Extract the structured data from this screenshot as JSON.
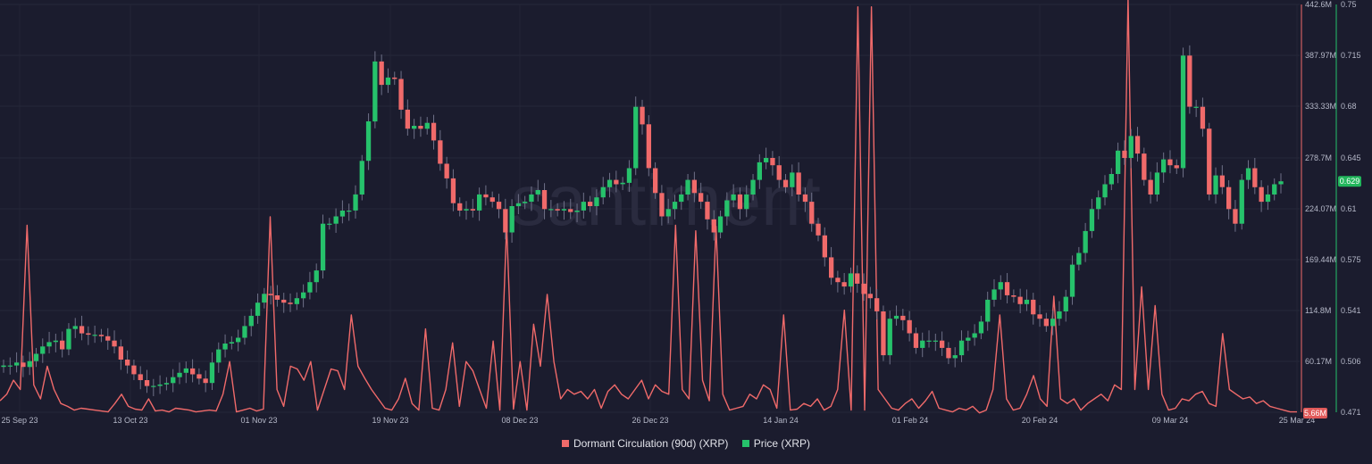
{
  "watermark": "santiment",
  "legend": {
    "items": [
      {
        "label": "Dormant Circulation (90d) (XRP)",
        "color": "#f06a6a"
      },
      {
        "label": "Price (XRP)",
        "color": "#26c26b"
      }
    ]
  },
  "chart_data": {
    "type": "line",
    "x_ticks": [
      "25 Sep 23",
      "13 Oct 23",
      "01 Nov 23",
      "19 Nov 23",
      "08 Dec 23",
      "26 Dec 23",
      "14 Jan 24",
      "01 Feb 24",
      "20 Feb 24",
      "09 Mar 24",
      "25 Mar 24"
    ],
    "left_axis": {
      "ticks": [
        "442.6M",
        "387.97M",
        "333.33M",
        "278.7M",
        "224.07M",
        "169.44M",
        "114.8M",
        "60.17M"
      ],
      "current_label": "5.66M",
      "range": [
        5.66,
        442.6
      ],
      "unit": "M"
    },
    "right_axis": {
      "ticks": [
        "0.75",
        "0.715",
        "0.68",
        "0.645",
        "0.61",
        "0.575",
        "0.541",
        "0.506",
        "0.471"
      ],
      "current_label": "0.629",
      "range": [
        0.471,
        0.75
      ]
    },
    "grid": true,
    "legend_position": "bottom-center",
    "series": [
      {
        "name": "Dormant Circulation (90d) (XRP)",
        "color": "#f06a6a",
        "values": [
          18,
          25,
          40,
          30,
          206,
          35,
          20,
          55,
          30,
          15,
          12,
          8,
          10,
          9,
          8,
          7,
          6,
          15,
          25,
          12,
          9,
          8,
          20,
          7,
          8,
          6,
          10,
          9,
          8,
          6,
          7,
          8,
          7,
          25,
          60,
          6,
          8,
          10,
          7,
          9,
          215,
          30,
          12,
          55,
          52,
          40,
          60,
          8,
          30,
          52,
          50,
          30,
          110,
          55,
          42,
          30,
          20,
          10,
          8,
          20,
          42,
          15,
          8,
          95,
          10,
          8,
          30,
          80,
          12,
          60,
          50,
          30,
          10,
          82,
          8,
          206,
          9,
          60,
          8,
          100,
          55,
          132,
          60,
          20,
          30,
          25,
          28,
          20,
          30,
          10,
          28,
          35,
          25,
          20,
          30,
          40,
          20,
          35,
          28,
          25,
          206,
          30,
          20,
          200,
          40,
          18,
          205,
          25,
          8,
          10,
          12,
          25,
          20,
          35,
          30,
          10,
          110,
          8,
          9,
          15,
          12,
          20,
          8,
          12,
          30,
          115,
          8,
          440,
          8,
          440,
          30,
          20,
          10,
          8,
          15,
          20,
          10,
          18,
          28,
          10,
          8,
          6,
          10,
          8,
          12,
          5,
          8,
          30,
          110,
          20,
          8,
          10,
          25,
          45,
          20,
          12,
          130,
          20,
          15,
          20,
          8,
          15,
          20,
          25,
          18,
          35,
          30,
          450,
          30,
          140,
          30,
          120,
          25,
          8,
          10,
          20,
          18,
          25,
          28,
          15,
          12,
          90,
          30,
          25,
          20,
          22,
          15,
          18,
          12,
          10,
          8,
          6,
          6
        ],
        "baseline": 5.66
      },
      {
        "name": "Price (XRP)",
        "type": "candlestick",
        "color_up": "#26c26b",
        "color_down": "#f06a6a",
        "closes": [
          0.503,
          0.503,
          0.505,
          0.502,
          0.506,
          0.511,
          0.516,
          0.519,
          0.52,
          0.514,
          0.528,
          0.53,
          0.525,
          0.524,
          0.524,
          0.523,
          0.52,
          0.516,
          0.507,
          0.503,
          0.497,
          0.493,
          0.489,
          0.489,
          0.49,
          0.491,
          0.495,
          0.498,
          0.501,
          0.497,
          0.494,
          0.491,
          0.505,
          0.514,
          0.518,
          0.519,
          0.522,
          0.53,
          0.537,
          0.546,
          0.552,
          0.551,
          0.548,
          0.546,
          0.545,
          0.549,
          0.553,
          0.56,
          0.568,
          0.6,
          0.6,
          0.605,
          0.609,
          0.609,
          0.62,
          0.643,
          0.67,
          0.711,
          0.695,
          0.7,
          0.699,
          0.678,
          0.665,
          0.667,
          0.665,
          0.669,
          0.657,
          0.641,
          0.631,
          0.614,
          0.609,
          0.61,
          0.609,
          0.62,
          0.618,
          0.615,
          0.61,
          0.594,
          0.612,
          0.614,
          0.615,
          0.62,
          0.623,
          0.61,
          0.61,
          0.609,
          0.61,
          0.608,
          0.609,
          0.615,
          0.612,
          0.618,
          0.625,
          0.63,
          0.627,
          0.628,
          0.638,
          0.68,
          0.668,
          0.638,
          0.621,
          0.605,
          0.61,
          0.615,
          0.62,
          0.63,
          0.621,
          0.615,
          0.603,
          0.594,
          0.605,
          0.616,
          0.62,
          0.61,
          0.62,
          0.63,
          0.642,
          0.645,
          0.64,
          0.63,
          0.625,
          0.635,
          0.62,
          0.615,
          0.6,
          0.592,
          0.577,
          0.563,
          0.56,
          0.557,
          0.566,
          0.559,
          0.552,
          0.549,
          0.54,
          0.51,
          0.535,
          0.537,
          0.534,
          0.525,
          0.515,
          0.52,
          0.52,
          0.52,
          0.515,
          0.508,
          0.51,
          0.52,
          0.522,
          0.525,
          0.533,
          0.548,
          0.555,
          0.56,
          0.551,
          0.55,
          0.545,
          0.548,
          0.538,
          0.535,
          0.53,
          0.535,
          0.54,
          0.55,
          0.572,
          0.58,
          0.595,
          0.61,
          0.618,
          0.627,
          0.634,
          0.65,
          0.645,
          0.66,
          0.648,
          0.63,
          0.62,
          0.635,
          0.644,
          0.64,
          0.638,
          0.715,
          0.68,
          0.68,
          0.665,
          0.62,
          0.633,
          0.625,
          0.61,
          0.6,
          0.63,
          0.638,
          0.625,
          0.615,
          0.62,
          0.627,
          0.629
        ],
        "last_value": 0.629
      }
    ]
  }
}
